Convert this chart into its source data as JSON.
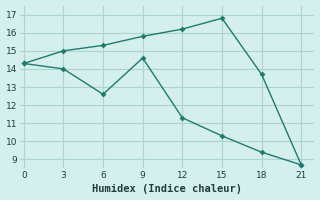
{
  "line1_x": [
    0,
    3,
    6,
    9,
    12,
    15,
    18,
    21
  ],
  "line1_y": [
    14.3,
    15.0,
    15.3,
    15.8,
    16.2,
    16.8,
    13.7,
    8.7
  ],
  "line2_x": [
    0,
    3,
    6,
    9,
    12,
    15,
    18,
    21
  ],
  "line2_y": [
    14.3,
    14.0,
    12.6,
    14.6,
    11.3,
    10.3,
    9.4,
    8.7
  ],
  "line_color": "#1f7a70",
  "marker": "D",
  "marker_size": 3,
  "linewidth": 1.0,
  "bg_color": "#d4efec",
  "grid_color": "#aed4cf",
  "xlabel": "Humidex (Indice chaleur)",
  "xlabel_fontsize": 7.5,
  "xticks": [
    0,
    3,
    6,
    9,
    12,
    15,
    18,
    21
  ],
  "yticks": [
    9,
    10,
    11,
    12,
    13,
    14,
    15,
    16,
    17
  ],
  "ylim": [
    8.5,
    17.5
  ],
  "xlim": [
    -0.3,
    22.0
  ]
}
